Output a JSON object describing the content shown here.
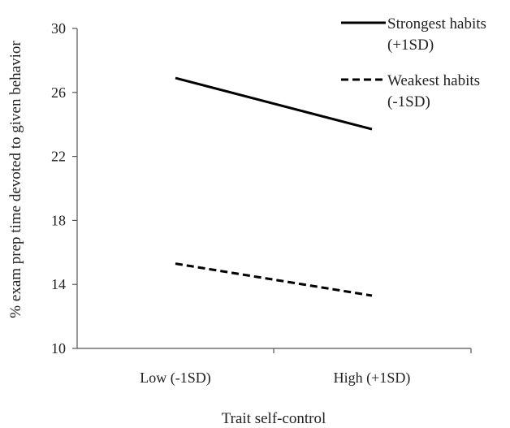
{
  "chart_data": {
    "type": "line",
    "categories": [
      "Low (-1SD)",
      "High (+1SD)"
    ],
    "series": [
      {
        "name": "Strongest habits (+1SD)",
        "legend_lines": [
          "Strongest habits",
          "(+1SD)"
        ],
        "values": [
          26.9,
          23.7
        ],
        "line_style": "solid",
        "color": "#000000"
      },
      {
        "name": "Weakest habits (-1SD)",
        "legend_lines": [
          "Weakest habits",
          "(-1SD)"
        ],
        "values": [
          15.3,
          13.3
        ],
        "line_style": "dashed",
        "color": "#000000"
      }
    ],
    "xlabel": "Trait self-control",
    "ylabel": "% exam prep time devoted to given behavior",
    "ylim": [
      10,
      30
    ],
    "yticks": [
      "10",
      "14",
      "18",
      "22",
      "26",
      "30"
    ],
    "grid": false,
    "legend_position": "top-right"
  }
}
